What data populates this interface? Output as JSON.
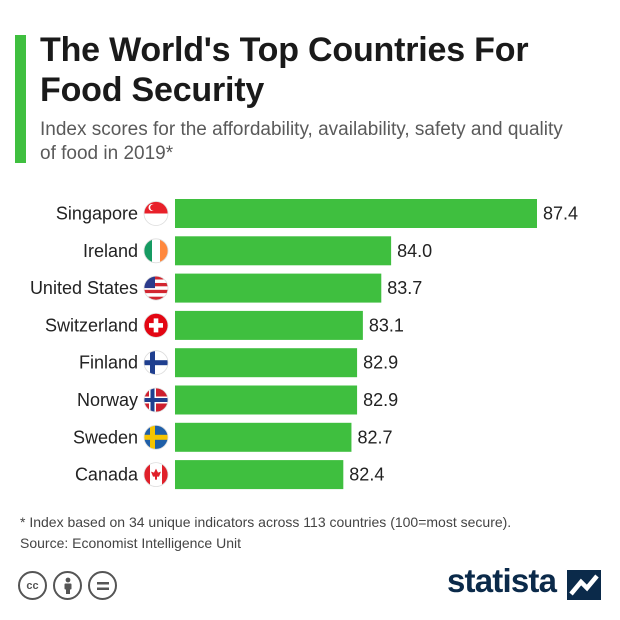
{
  "header": {
    "title": "The World's Top Countries For Food Security",
    "subtitle": "Index scores for the affordability, availability, safety and quality of food in 2019*"
  },
  "chart_data": {
    "type": "bar",
    "orientation": "horizontal",
    "title": "The World's Top Countries For Food Security",
    "subtitle": "Index scores for the affordability, availability, safety and quality of food in 2019*",
    "categories": [
      "Singapore",
      "Ireland",
      "United States",
      "Switzerland",
      "Finland",
      "Norway",
      "Sweden",
      "Canada"
    ],
    "values": [
      87.4,
      84.0,
      83.7,
      83.1,
      82.9,
      82.9,
      82.7,
      82.4
    ],
    "value_labels": [
      "87.4",
      "84.0",
      "83.7",
      "83.1",
      "82.9",
      "82.9",
      "82.7",
      "82.4"
    ],
    "flags": [
      "singapore-flag-icon",
      "ireland-flag-icon",
      "united-states-flag-icon",
      "switzerland-flag-icon",
      "finland-flag-icon",
      "norway-flag-icon",
      "sweden-flag-icon",
      "canada-flag-icon"
    ],
    "bar_color": "#3fbf3f",
    "xlabel": "",
    "ylabel": "",
    "grid": false,
    "legend": false
  },
  "footer": {
    "footnote": "* Index based on 34 unique indicators across 113 countries (100=most secure).",
    "source": "Source: Economist Intelligence Unit",
    "logo": "statista",
    "license_icons": [
      "cc-icon",
      "attribution-icon",
      "no-derivatives-icon"
    ]
  },
  "colors": {
    "accent": "#3fbf3f",
    "logo": "#0b2a4a"
  }
}
